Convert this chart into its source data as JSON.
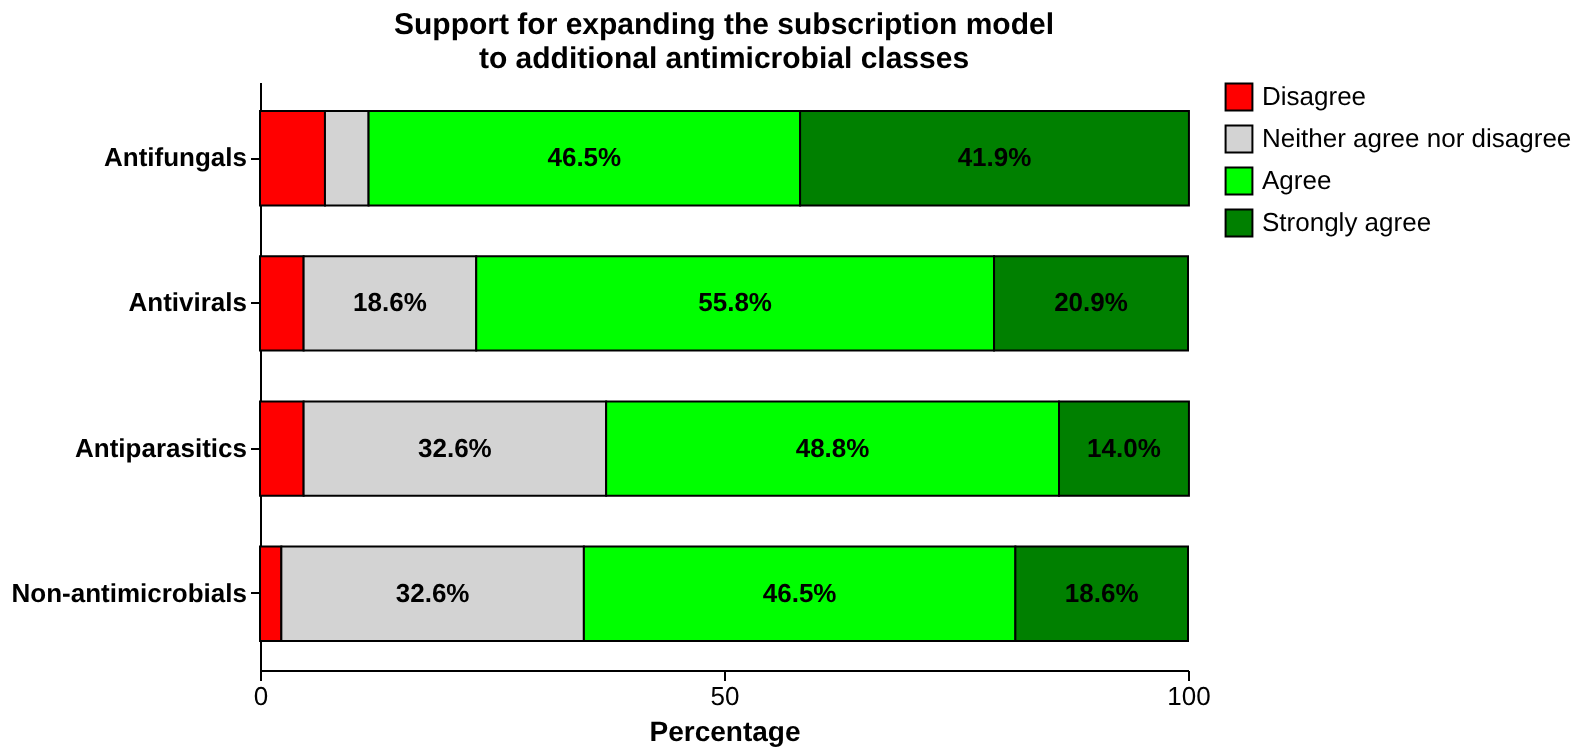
{
  "chart_data": {
    "type": "bar",
    "orientation": "horizontal",
    "stacked": true,
    "title": "Support for expanding the subscription model\nto additional antimicrobial classes",
    "xlabel": "Percentage",
    "categories": [
      "Antifungals",
      "Antivirals",
      "Antiparasitics",
      "Non-antimicrobials"
    ],
    "series": [
      {
        "name": "Disagree",
        "color": "#ff0000",
        "values": [
          7.0,
          4.7,
          4.7,
          2.3
        ],
        "value_labels": [
          null,
          null,
          null,
          null
        ]
      },
      {
        "name": "Neither agree nor disagree",
        "color": "#d3d3d3",
        "values": [
          4.7,
          18.6,
          32.6,
          32.6
        ],
        "value_labels": [
          null,
          "18.6%",
          "32.6%",
          "32.6%"
        ]
      },
      {
        "name": "Agree",
        "color": "#00ff00",
        "values": [
          46.5,
          55.8,
          48.8,
          46.5
        ],
        "value_labels": [
          "46.5%",
          "55.8%",
          "48.8%",
          "46.5%"
        ]
      },
      {
        "name": "Strongly agree",
        "color": "#008000",
        "values": [
          41.9,
          20.9,
          14.0,
          18.6
        ],
        "value_labels": [
          "41.9%",
          "20.9%",
          "14.0%",
          "18.6%"
        ]
      }
    ],
    "xlim": [
      0,
      100
    ],
    "xticks": [
      0,
      50,
      100
    ],
    "grid": false,
    "legend": "right"
  }
}
